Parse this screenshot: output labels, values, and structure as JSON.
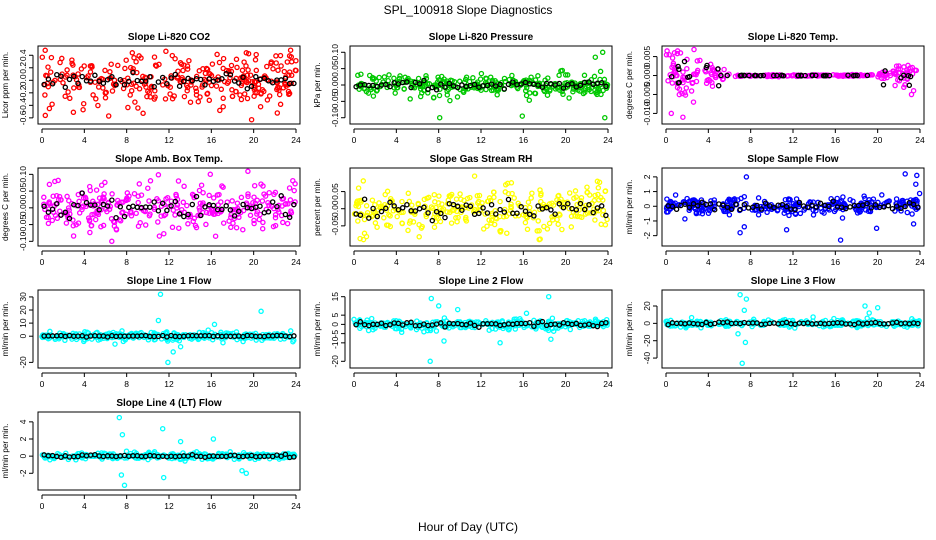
{
  "figure": {
    "title": "SPL_100918  Slope Diagnostics",
    "xlabel": "Hour of Day (UTC)"
  },
  "chart_data": [
    {
      "type": "scatter",
      "title": "Slope Li-820 CO2",
      "ylabel": "Licor ppm per min.",
      "xlim": [
        0,
        24
      ],
      "ylim": [
        -0.65,
        0.5
      ],
      "yticks": [
        -0.6,
        -0.4,
        -0.2,
        0.0,
        0.2,
        0.4
      ],
      "yticklabels": [
        "-0.6",
        "-0.4",
        "-0.2",
        "0.0",
        "0.2",
        "0.4"
      ],
      "xticks": [
        0,
        4,
        8,
        12,
        16,
        20,
        24
      ],
      "color": "#ff0000",
      "seed": 1,
      "spread": 0.2,
      "hourly_mean_spread": 0.06,
      "outliers": [
        {
          "x": 0.3,
          "y": 0.48
        },
        {
          "x": 19.8,
          "y": -0.63
        },
        {
          "x": 19.3,
          "y": 0.44
        },
        {
          "x": 22.1,
          "y": 0.39
        },
        {
          "x": 23.4,
          "y": 0.39
        },
        {
          "x": 0.7,
          "y": -0.45
        },
        {
          "x": 16.8,
          "y": -0.48
        }
      ]
    },
    {
      "type": "scatter",
      "title": "Slope Li-820 Pressure",
      "ylabel": "kPa per min.",
      "xlim": [
        0,
        24
      ],
      "ylim": [
        -0.11,
        0.11
      ],
      "yticks": [
        -0.1,
        -0.05,
        0.0,
        0.05,
        0.1
      ],
      "yticklabels": [
        "-0.10",
        "-0.05",
        "0.00",
        "0.05",
        "0.10"
      ],
      "xticks": [
        0,
        4,
        8,
        12,
        16,
        20,
        24
      ],
      "color": "#00c800",
      "seed": 2,
      "spread": 0.015,
      "hourly_mean_spread": 0.005,
      "outliers": [
        {
          "x": 23.5,
          "y": 0.1
        },
        {
          "x": 23.7,
          "y": -0.1
        },
        {
          "x": 22.8,
          "y": 0.085
        },
        {
          "x": 8.1,
          "y": -0.1
        },
        {
          "x": 15.9,
          "y": -0.095
        },
        {
          "x": 6.3,
          "y": -0.035
        }
      ]
    },
    {
      "type": "scatter",
      "title": "Slope Li-820 Temp.",
      "ylabel": "degrees C per min.",
      "xlim": [
        0,
        24
      ],
      "ylim": [
        -0.012,
        0.007
      ],
      "yticks": [
        -0.01,
        -0.005,
        0.0,
        0.005
      ],
      "yticklabels": [
        "-0.010",
        "-0.005",
        "0.000",
        "0.005"
      ],
      "xticks": [
        0,
        4,
        8,
        12,
        16,
        20,
        24
      ],
      "color": "#ff00ff",
      "seed": 3,
      "spread": 0.0,
      "hourly_mean_spread": 0.0,
      "profile": "temp"
    },
    {
      "type": "scatter",
      "title": "Slope Amb. Box Temp.",
      "ylabel": "degrees C per min.",
      "xlim": [
        0,
        24
      ],
      "ylim": [
        -0.105,
        0.11
      ],
      "yticks": [
        -0.1,
        -0.05,
        0.0,
        0.05,
        0.1
      ],
      "yticklabels": [
        "-0.10",
        "-0.05",
        "0.00",
        "0.05",
        "0.10"
      ],
      "xticks": [
        0,
        4,
        8,
        12,
        16,
        20,
        24
      ],
      "color": "#ff00ff",
      "seed": 4,
      "spread": 0.035,
      "hourly_mean_spread": 0.015,
      "outliers": [
        {
          "x": 15.9,
          "y": 0.1
        },
        {
          "x": 6.6,
          "y": -0.1
        },
        {
          "x": 0.7,
          "y": 0.07
        },
        {
          "x": 12.9,
          "y": 0.08
        }
      ]
    },
    {
      "type": "scatter",
      "title": "Slope Gas Stream RH",
      "ylabel": "percent per min.",
      "xlim": [
        0,
        24
      ],
      "ylim": [
        -0.1,
        0.11
      ],
      "yticks": [
        -0.05,
        0.0,
        0.05
      ],
      "yticklabels": [
        "-0.05",
        "0.00",
        "0.05"
      ],
      "xticks": [
        0,
        4,
        8,
        12,
        16,
        20,
        24
      ],
      "color": "#ffff00",
      "seed": 5,
      "spread": 0.035,
      "hourly_mean_spread": 0.015,
      "outliers": [
        {
          "x": 11.4,
          "y": 0.095
        },
        {
          "x": 0.9,
          "y": -0.09
        },
        {
          "x": 17.5,
          "y": -0.09
        },
        {
          "x": 23.0,
          "y": 0.08
        }
      ]
    },
    {
      "type": "scatter",
      "title": "Slope Sample Flow",
      "ylabel": "ml/min per min.",
      "xlim": [
        0,
        24
      ],
      "ylim": [
        -2.5,
        2.4
      ],
      "yticks": [
        -2,
        -1,
        0,
        1,
        2
      ],
      "yticklabels": [
        "-2",
        "-1",
        "0",
        "1",
        "2"
      ],
      "xticks": [
        0,
        4,
        8,
        12,
        16,
        20,
        24
      ],
      "color": "#0000ff",
      "seed": 6,
      "spread": 0.3,
      "hourly_mean_spread": 0.15,
      "outliers": [
        {
          "x": 7.6,
          "y": 2.0
        },
        {
          "x": 7.4,
          "y": -1.4
        },
        {
          "x": 7.0,
          "y": -1.8
        },
        {
          "x": 16.5,
          "y": -2.3
        },
        {
          "x": 22.6,
          "y": 2.2
        },
        {
          "x": 23.7,
          "y": 2.1
        },
        {
          "x": 11.4,
          "y": -1.6
        },
        {
          "x": 19.9,
          "y": -1.5
        },
        {
          "x": 23.4,
          "y": -1.2
        },
        {
          "x": 23.6,
          "y": 1.5
        }
      ]
    },
    {
      "type": "scatter",
      "title": "Slope Line 1 Flow",
      "ylabel": "ml/min per min.",
      "xlim": [
        0,
        24
      ],
      "ylim": [
        -22,
        33
      ],
      "yticks": [
        -20,
        0,
        10,
        20,
        30
      ],
      "yticklabels": [
        "-20",
        "0",
        "10",
        "20",
        "30"
      ],
      "xticks": [
        0,
        4,
        8,
        12,
        16,
        20,
        24
      ],
      "color": "#00ffff",
      "seed": 7,
      "spread": 1.5,
      "hourly_mean_spread": 0.3,
      "outliers": [
        {
          "x": 11.2,
          "y": 32
        },
        {
          "x": 11.9,
          "y": -20
        },
        {
          "x": 12.4,
          "y": -12
        },
        {
          "x": 20.7,
          "y": 19
        },
        {
          "x": 16.3,
          "y": 9
        },
        {
          "x": 11.0,
          "y": 12
        },
        {
          "x": 6.9,
          "y": -6
        },
        {
          "x": 13.1,
          "y": -8
        },
        {
          "x": 17.1,
          "y": -5
        }
      ]
    },
    {
      "type": "scatter",
      "title": "Slope Line 2 Flow",
      "ylabel": "ml/min per min.",
      "xlim": [
        0,
        24
      ],
      "ylim": [
        -22,
        17
      ],
      "yticks": [
        -20,
        -10,
        -5,
        0,
        5,
        15
      ],
      "yticklabels": [
        "-20",
        "-10",
        "-5",
        "0",
        "5",
        "15"
      ],
      "xticks": [
        0,
        4,
        8,
        12,
        16,
        20,
        24
      ],
      "color": "#00ffff",
      "seed": 8,
      "spread": 1.5,
      "hourly_mean_spread": 0.6,
      "outliers": [
        {
          "x": 7.2,
          "y": -20
        },
        {
          "x": 7.3,
          "y": 14
        },
        {
          "x": 8.0,
          "y": 10
        },
        {
          "x": 18.6,
          "y": -8
        },
        {
          "x": 13.8,
          "y": -10
        },
        {
          "x": 18.4,
          "y": 15
        },
        {
          "x": 8.5,
          "y": -9
        },
        {
          "x": 9.8,
          "y": 8
        },
        {
          "x": 6.6,
          "y": -4
        },
        {
          "x": 16.3,
          "y": 6
        }
      ]
    },
    {
      "type": "scatter",
      "title": "Slope Line 3 Flow",
      "ylabel": "ml/min per min.",
      "xlim": [
        0,
        24
      ],
      "ylim": [
        -48,
        35
      ],
      "yticks": [
        -40,
        -20,
        0,
        20
      ],
      "yticklabels": [
        "-40",
        "-20",
        "0",
        "20"
      ],
      "xticks": [
        0,
        4,
        8,
        12,
        16,
        20,
        24
      ],
      "color": "#00ffff",
      "seed": 9,
      "spread": 2.0,
      "hourly_mean_spread": 0.8,
      "outliers": [
        {
          "x": 7.2,
          "y": -46
        },
        {
          "x": 7.0,
          "y": 33
        },
        {
          "x": 7.6,
          "y": 28
        },
        {
          "x": 7.5,
          "y": -22
        },
        {
          "x": 6.8,
          "y": -12
        },
        {
          "x": 18.8,
          "y": 20
        },
        {
          "x": 20.0,
          "y": 18
        },
        {
          "x": 7.4,
          "y": 15
        },
        {
          "x": 19.2,
          "y": 12
        }
      ]
    },
    {
      "type": "scatter",
      "title": "Slope Line 4 (LT) Flow",
      "ylabel": "ml/min per min.",
      "xlim": [
        0,
        24
      ],
      "ylim": [
        -3.6,
        4.8
      ],
      "yticks": [
        -2,
        0,
        2,
        4
      ],
      "yticklabels": [
        "-2",
        "0",
        "2",
        "4"
      ],
      "xticks": [
        0,
        4,
        8,
        12,
        16,
        20,
        24
      ],
      "color": "#00ffff",
      "seed": 10,
      "spread": 0.2,
      "hourly_mean_spread": 0.08,
      "outliers": [
        {
          "x": 7.3,
          "y": 4.5
        },
        {
          "x": 7.8,
          "y": -3.4
        },
        {
          "x": 11.4,
          "y": 3.2
        },
        {
          "x": 11.5,
          "y": -2.5
        },
        {
          "x": 16.2,
          "y": 2.0
        },
        {
          "x": 7.6,
          "y": 2.5
        },
        {
          "x": 18.9,
          "y": -1.7
        },
        {
          "x": 19.3,
          "y": -2.0
        },
        {
          "x": 7.5,
          "y": -2.2
        },
        {
          "x": 13.1,
          "y": 1.7
        }
      ]
    }
  ]
}
